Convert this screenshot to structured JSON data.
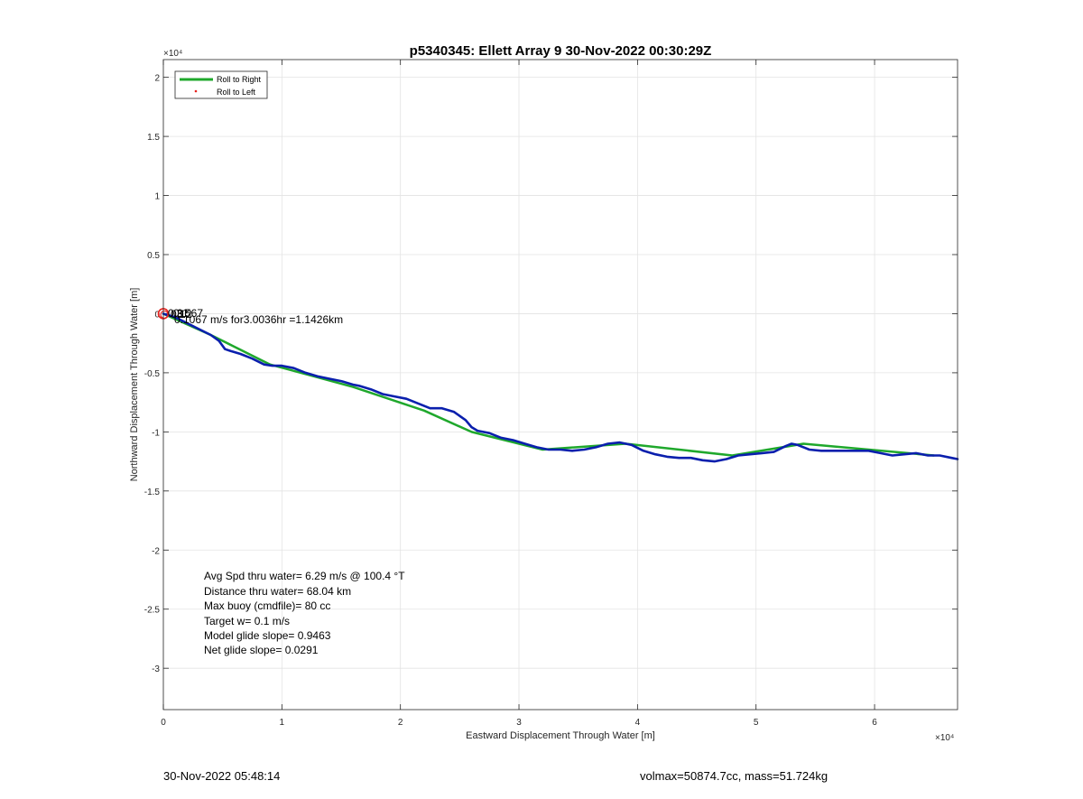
{
  "chart_data": {
    "type": "line",
    "title": "p5340345: Ellett Array 9 30-Nov-2022 00:30:29Z",
    "xlabel": "Eastward Displacement Through Water [m]",
    "ylabel": "Northward Displacement Through Water [m]",
    "xlim": [
      0,
      67000
    ],
    "ylim": [
      -33500,
      21500
    ],
    "x_exponent_label": "×10⁴",
    "y_exponent_label": "×10⁴",
    "x_ticks": [
      {
        "value": 0,
        "label": "0"
      },
      {
        "value": 10000,
        "label": "1"
      },
      {
        "value": 20000,
        "label": "2"
      },
      {
        "value": 30000,
        "label": "3"
      },
      {
        "value": 40000,
        "label": "4"
      },
      {
        "value": 50000,
        "label": "5"
      },
      {
        "value": 60000,
        "label": "6"
      }
    ],
    "y_ticks": [
      {
        "value": 20000,
        "label": "2"
      },
      {
        "value": 15000,
        "label": "1.5"
      },
      {
        "value": 10000,
        "label": "1"
      },
      {
        "value": 5000,
        "label": "0.5"
      },
      {
        "value": 0,
        "label": "0"
      },
      {
        "value": -5000,
        "label": "-0.5"
      },
      {
        "value": -10000,
        "label": "-1"
      },
      {
        "value": -15000,
        "label": "-1.5"
      },
      {
        "value": -20000,
        "label": "-2"
      },
      {
        "value": -25000,
        "label": "-2.5"
      },
      {
        "value": -30000,
        "label": "-3"
      }
    ],
    "grid": true,
    "legend": {
      "placement": "top-left",
      "entries": [
        {
          "label": "Roll to Right",
          "color": "#1fa82c",
          "marker": "line"
        },
        {
          "label": "Roll to Left",
          "color": "#e8201c",
          "marker": "dot"
        }
      ]
    },
    "series": [
      {
        "name": "Roll to Right",
        "color": "#1fa82c",
        "x": [
          0,
          4000,
          9000,
          16000,
          22000,
          26000,
          32000,
          39000,
          48000,
          54000,
          65000
        ],
        "y": [
          0,
          -1800,
          -4300,
          -6200,
          -8200,
          -10000,
          -11500,
          -11000,
          -12000,
          -11000,
          -12000
        ]
      },
      {
        "name": "track",
        "color": "#0a1fad",
        "x": [
          0,
          1000,
          2000,
          3000,
          4000,
          4700,
          5200,
          5800,
          6500,
          7500,
          8500,
          9200,
          10000,
          11000,
          12000,
          13000,
          14000,
          15000,
          16000,
          16500,
          17500,
          18500,
          19500,
          20500,
          21500,
          22500,
          23500,
          24500,
          25500,
          26000,
          26500,
          27500,
          28500,
          29500,
          30500,
          31500,
          32500,
          33500,
          34500,
          35500,
          36500,
          37500,
          38500,
          39500,
          40500,
          41500,
          42500,
          43500,
          44500,
          45500,
          46500,
          47500,
          48500,
          49500,
          50500,
          51500,
          52500,
          53000,
          53500,
          54500,
          55500,
          56500,
          57500,
          58500,
          59500,
          60500,
          61500,
          62500,
          63500,
          64500,
          65500,
          66500,
          67000
        ],
        "y": [
          0,
          -300,
          -800,
          -1300,
          -1800,
          -2300,
          -3000,
          -3200,
          -3400,
          -3800,
          -4300,
          -4400,
          -4400,
          -4600,
          -5000,
          -5300,
          -5500,
          -5700,
          -6000,
          -6100,
          -6400,
          -6800,
          -7000,
          -7200,
          -7600,
          -8000,
          -8000,
          -8300,
          -9000,
          -9600,
          -9900,
          -10100,
          -10500,
          -10700,
          -11000,
          -11300,
          -11500,
          -11500,
          -11600,
          -11500,
          -11300,
          -11000,
          -10900,
          -11100,
          -11600,
          -11900,
          -12100,
          -12200,
          -12200,
          -12400,
          -12500,
          -12300,
          -12000,
          -11900,
          -11800,
          -11700,
          -11200,
          -11000,
          -11100,
          -11500,
          -11600,
          -11600,
          -11600,
          -11600,
          -11600,
          -11800,
          -12000,
          -11900,
          -11800,
          -12000,
          -12000,
          -12200,
          -12300
        ]
      }
    ],
    "markers": [
      {
        "type": "circle",
        "x": 0,
        "y": 0,
        "color": "#e8201c"
      }
    ],
    "annotations": {
      "near_origin_lines": [
        "0.3",
        "0.1",
        "0.1",
        "3.2",
        "567",
        "0.1067 m/s for3.0036hr =1.1426km"
      ],
      "stats": [
        "Avg Spd thru water=  6.29 m/s @ 100.4 °T",
        "Distance thru water= 68.04 km",
        "Max buoy (cmdfile)= 80 cc",
        "Target w= 0.1 m/s",
        "Model glide slope= 0.9463",
        "Net glide slope= 0.0291"
      ]
    }
  },
  "footer": {
    "timestamp": "30-Nov-2022 05:48:14",
    "vol_mass": "volmax=50874.7cc, mass=51.724kg"
  }
}
